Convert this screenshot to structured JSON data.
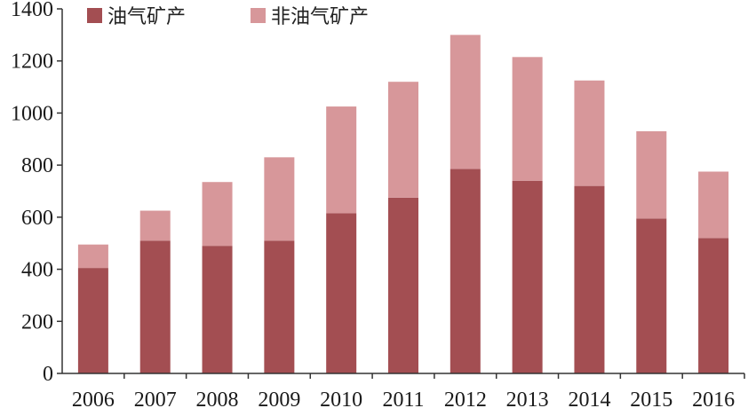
{
  "chart_data": {
    "type": "bar",
    "stacked": true,
    "categories": [
      "2006",
      "2007",
      "2008",
      "2009",
      "2010",
      "2011",
      "2012",
      "2013",
      "2014",
      "2015",
      "2016"
    ],
    "series": [
      {
        "name": "油气矿产",
        "color": "#a34e52",
        "values": [
          405,
          510,
          490,
          510,
          615,
          675,
          785,
          740,
          720,
          595,
          520
        ]
      },
      {
        "name": "非油气矿产",
        "color": "#d7979a",
        "values": [
          90,
          115,
          245,
          320,
          410,
          445,
          515,
          475,
          405,
          335,
          255
        ]
      }
    ],
    "ylim": [
      0,
      1400
    ],
    "yticks": [
      "0",
      "200",
      "400",
      "600",
      "800",
      "1000",
      "1200",
      "1400"
    ],
    "grid": false,
    "legend_position": "top-left"
  }
}
